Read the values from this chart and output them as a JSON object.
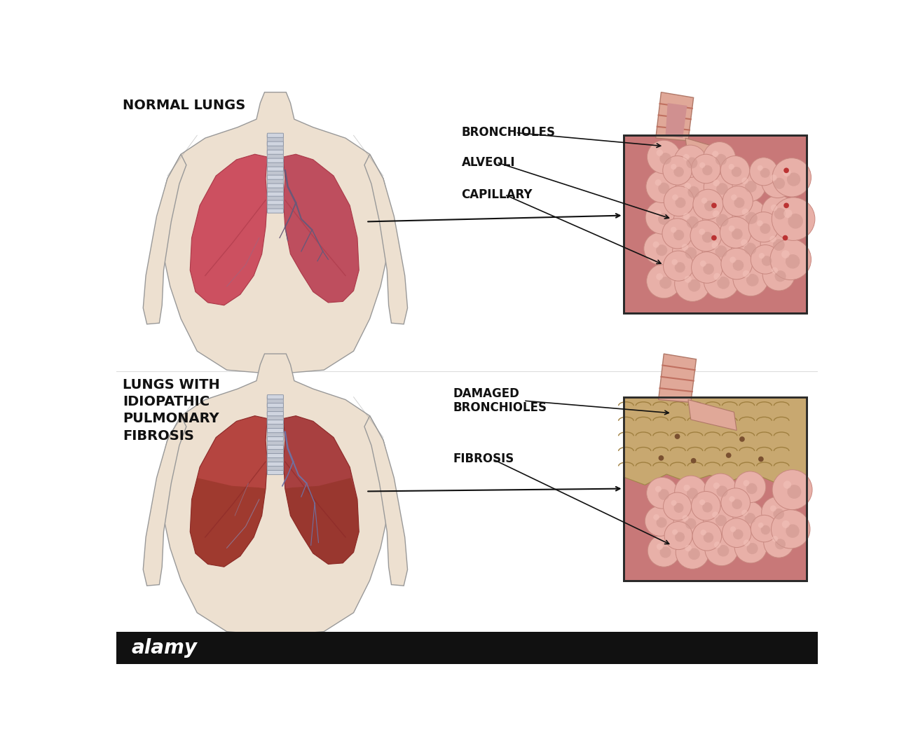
{
  "background_color": "#ffffff",
  "title_normal": "NORMAL LUNGS",
  "title_fibrosis": "LUNGS WITH\nIDIOPATHIC\nPULMONARY\nFIBROSIS",
  "labels_normal": [
    "BRONCHIOLES",
    "ALVEOLI",
    "CAPILLARY"
  ],
  "labels_fibrosis": [
    "DAMAGED\nBRONCHIOLES",
    "FIBROSIS"
  ],
  "body_skin": "#ede0d0",
  "body_outline": "#999999",
  "lung_left_color": "#c45060",
  "lung_right_color": "#c05068",
  "lung_fibrosis_left": "#b04840",
  "lung_fibrosis_right": "#9e4238",
  "trachea_ring_color": "#b0b5c0",
  "alveoli_bg": "#c87c7c",
  "alveoli_sphere_color": "#e8a8a0",
  "alveoli_sphere_edge": "#c87870",
  "fibrosis_sandy": "#c8a870",
  "text_color": "#111111",
  "arrow_color": "#111111",
  "box_outline": "#333333",
  "bronchiole_tube_color": "#e0a090",
  "bronchiole_tube_edge": "#b07060",
  "bottom_bar_color": "#111111",
  "bottom_bar_text": "alamy",
  "label_fontsize": 12,
  "title_fontsize": 14
}
